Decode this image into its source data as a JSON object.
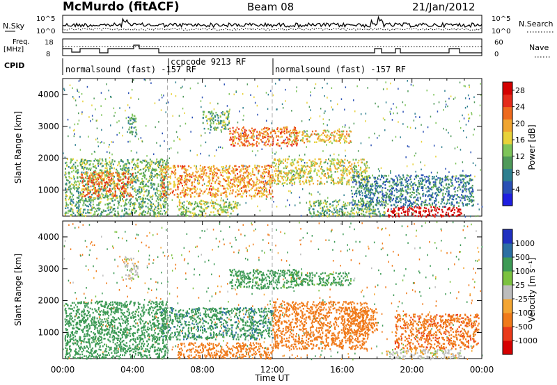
{
  "header": {
    "station": "McMurdo (fitACF)",
    "beam": "Beam 08",
    "date": "21/Jan/2012"
  },
  "strip": {
    "nsky_label": "N.Sky",
    "nsearch_label": "N.Search",
    "noise_ticks": [
      "10^5",
      "10^0"
    ],
    "freq_label_1": "Freq.",
    "freq_label_2": "[MHz]",
    "freq_ticks": [
      "18",
      "8"
    ],
    "nave_label": "Nave",
    "nave_ticks": [
      "60",
      "0"
    ],
    "cpid_label": "CPID",
    "cpid_segments": [
      {
        "label": "normalsound (fast) -157 RF",
        "start_h": 0,
        "end_h": 6
      },
      {
        "label": "ccpcode 9213 RF",
        "start_h": 6,
        "end_h": 12
      },
      {
        "label": "normalsound (fast) -157 RF",
        "start_h": 12,
        "end_h": 24
      }
    ]
  },
  "chart_data": [
    {
      "type": "heatmap",
      "title": "",
      "ylabel": "Slant Range [km]",
      "xlabel": "Time UT",
      "x_ticks": [
        "00:00",
        "04:00",
        "08:00",
        "12:00",
        "16:00",
        "20:00",
        "00:00"
      ],
      "xlim_hours": [
        0,
        24
      ],
      "ylim_km": [
        180,
        4500
      ],
      "y_ticks": [
        1000,
        2000,
        3000,
        4000
      ],
      "colorbar": {
        "label": "Power [dB]",
        "ticks": [
          "28",
          "24",
          "20",
          "16",
          "12",
          "8",
          "4"
        ],
        "range": [
          0,
          30
        ],
        "colors": [
          "#1f1fe0",
          "#2a50b5",
          "#2e7f8f",
          "#4f9a5a",
          "#7ec45a",
          "#e8d23a",
          "#f0a531",
          "#ee6a1e",
          "#e52b1a",
          "#d40000"
        ]
      },
      "echo_regions": [
        {
          "t0": 0.1,
          "t1": 6.0,
          "r0": 200,
          "r1": 2000,
          "level": 12
        },
        {
          "t0": 1.0,
          "t1": 4.0,
          "r0": 800,
          "r1": 1600,
          "level": 22
        },
        {
          "t0": 3.7,
          "t1": 4.2,
          "r0": 2700,
          "r1": 3400,
          "level": 10
        },
        {
          "t0": 5.6,
          "t1": 12.0,
          "r0": 800,
          "r1": 1800,
          "level": 20
        },
        {
          "t0": 6.5,
          "t1": 10.0,
          "r0": 200,
          "r1": 700,
          "level": 14
        },
        {
          "t0": 8.0,
          "t1": 9.5,
          "r0": 2900,
          "r1": 3500,
          "level": 12
        },
        {
          "t0": 9.5,
          "t1": 13.5,
          "r0": 2400,
          "r1": 3000,
          "level": 22
        },
        {
          "t0": 12.0,
          "t1": 17.5,
          "r0": 1200,
          "r1": 2000,
          "level": 16
        },
        {
          "t0": 13.0,
          "t1": 16.5,
          "r0": 2500,
          "r1": 2900,
          "level": 18
        },
        {
          "t0": 14.0,
          "t1": 18.5,
          "r0": 200,
          "r1": 700,
          "level": 12
        },
        {
          "t0": 18.5,
          "t1": 22.8,
          "r0": 180,
          "r1": 500,
          "level": 30
        },
        {
          "t0": 16.5,
          "t1": 23.5,
          "r0": 500,
          "r1": 1500,
          "level": 8
        }
      ]
    },
    {
      "type": "heatmap",
      "title": "",
      "ylabel": "Slant Range [km]",
      "xlabel": "Time UT",
      "x_ticks": [
        "00:00",
        "04:00",
        "08:00",
        "12:00",
        "16:00",
        "20:00",
        "00:00"
      ],
      "xlim_hours": [
        0,
        24
      ],
      "ylim_km": [
        180,
        4500
      ],
      "y_ticks": [
        1000,
        2000,
        3000,
        4000
      ],
      "colorbar": {
        "label": "Velocity [m s⁻¹]",
        "ticks": [
          "1000",
          "500",
          "100",
          "25",
          "-25",
          "-100",
          "-500",
          "-1000"
        ],
        "range": [
          -1000,
          1000
        ],
        "colors": [
          "#d60000",
          "#ea3a1a",
          "#f07a1a",
          "#f3a533",
          "#bdbdbd",
          "#7cc240",
          "#3d9a55",
          "#2c6fa3",
          "#2030c0"
        ]
      },
      "echo_regions": [
        {
          "t0": 0.1,
          "t1": 6.0,
          "r0": 200,
          "r1": 2000,
          "level": 300
        },
        {
          "t0": 3.5,
          "t1": 4.3,
          "r0": 2700,
          "r1": 3400,
          "level": 0
        },
        {
          "t0": 5.6,
          "t1": 12.0,
          "r0": 800,
          "r1": 1800,
          "level": 400
        },
        {
          "t0": 6.5,
          "t1": 12.0,
          "r0": 200,
          "r1": 700,
          "level": -300
        },
        {
          "t0": 9.5,
          "t1": 13.5,
          "r0": 2400,
          "r1": 3000,
          "level": 150
        },
        {
          "t0": 12.0,
          "t1": 17.5,
          "r0": 500,
          "r1": 2000,
          "level": -300
        },
        {
          "t0": 13.0,
          "t1": 16.5,
          "r0": 2500,
          "r1": 2900,
          "level": 150
        },
        {
          "t0": 16.0,
          "t1": 18.0,
          "r0": 1000,
          "r1": 1800,
          "level": -300
        },
        {
          "t0": 18.5,
          "t1": 22.8,
          "r0": 180,
          "r1": 500,
          "level": 0
        },
        {
          "t0": 19.0,
          "t1": 23.8,
          "r0": 500,
          "r1": 1600,
          "level": -400
        }
      ]
    }
  ]
}
